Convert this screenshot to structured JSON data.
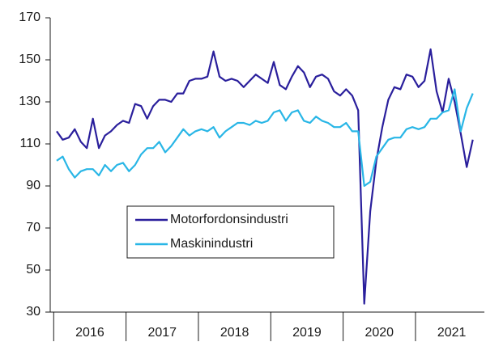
{
  "chart_data": {
    "type": "line",
    "categories": [
      null,
      null,
      null,
      null,
      null,
      null,
      "2016",
      null,
      null,
      null,
      null,
      null,
      null,
      null,
      null,
      null,
      null,
      null,
      "2017",
      null,
      null,
      null,
      null,
      null,
      null,
      null,
      null,
      null,
      null,
      null,
      "2018",
      null,
      null,
      null,
      null,
      null,
      null,
      null,
      null,
      null,
      null,
      null,
      "2019",
      null,
      null,
      null,
      null,
      null,
      null,
      null,
      null,
      null,
      null,
      null,
      "2020",
      null,
      null,
      null,
      null,
      null,
      null,
      null,
      null,
      null,
      null,
      null,
      "2021",
      null,
      null,
      null
    ],
    "series": [
      {
        "name": "Motorfordonsindustri",
        "color": "#2a1f9c",
        "values": [
          116,
          112,
          113,
          117,
          111,
          108,
          122,
          108,
          114,
          116,
          119,
          121,
          120,
          129,
          128,
          122,
          128,
          131,
          131,
          130,
          134,
          134,
          140,
          141,
          141,
          142,
          154,
          142,
          140,
          141,
          140,
          137,
          140,
          143,
          141,
          139,
          149,
          138,
          136,
          142,
          147,
          144,
          137,
          142,
          143,
          141,
          135,
          133,
          136,
          133,
          126,
          34,
          78,
          102,
          118,
          131,
          137,
          136,
          143,
          142,
          137,
          140,
          155,
          135,
          125,
          141,
          130,
          115,
          99,
          112
        ]
      },
      {
        "name": "Maskinindustri",
        "color": "#29b6e6",
        "values": [
          102,
          104,
          98,
          94,
          97,
          98,
          98,
          95,
          100,
          97,
          100,
          101,
          97,
          100,
          105,
          108,
          108,
          111,
          106,
          109,
          113,
          117,
          114,
          116,
          117,
          116,
          118,
          113,
          116,
          118,
          120,
          120,
          119,
          121,
          120,
          121,
          125,
          126,
          121,
          125,
          126,
          121,
          120,
          123,
          121,
          120,
          118,
          118,
          120,
          116,
          116,
          90,
          92,
          104,
          108,
          112,
          113,
          113,
          117,
          118,
          117,
          118,
          122,
          122,
          125,
          126,
          136,
          116,
          127,
          134
        ]
      }
    ],
    "ylim": [
      30,
      170
    ],
    "yticks": [
      30,
      50,
      70,
      90,
      110,
      130,
      150,
      170
    ],
    "legend": "center-left"
  }
}
